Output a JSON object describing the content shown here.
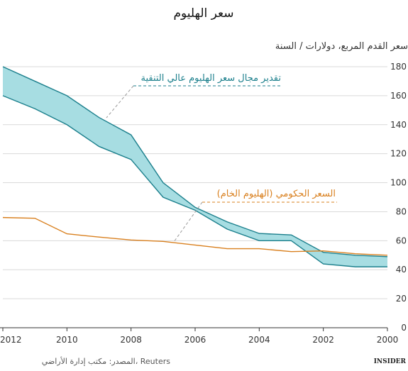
{
  "chart_data": {
    "type": "area",
    "title": "سعر الهليوم",
    "subtitle": "سعر القدم المربع، دولارات / السنة",
    "x_range": [
      2000,
      2012
    ],
    "x_reversed": true,
    "x_ticks": [
      2012,
      2010,
      2008,
      2006,
      2004,
      2002,
      2000
    ],
    "ylim": [
      0,
      180
    ],
    "y_ticks": [
      0,
      20,
      40,
      60,
      80,
      100,
      120,
      140,
      160,
      180
    ],
    "grid": true,
    "series": [
      {
        "name": "تقدير مجال سعر الهليوم عالي التنقية",
        "kind": "band",
        "color": "#1b7f8c",
        "fill": "#a7dde2",
        "x": [
          2012,
          2011,
          2010,
          2009,
          2008,
          2007,
          2006,
          2005,
          2004,
          2003,
          2002,
          2001,
          2000
        ],
        "upper": [
          180,
          170,
          160,
          145,
          133,
          100,
          83,
          73,
          65,
          64,
          52,
          50,
          49
        ],
        "lower": [
          160,
          151,
          140,
          125,
          116,
          90,
          81,
          68,
          60,
          60,
          44,
          42,
          42
        ]
      },
      {
        "name": "السعر الحكومي (الهليوم الخام)",
        "kind": "line",
        "color": "#d9801f",
        "x": [
          2012,
          2011,
          2010,
          2009,
          2008,
          2007,
          2006,
          2005,
          2004,
          2003,
          2002,
          2001,
          2000
        ],
        "values": [
          76,
          75.5,
          64.75,
          62.5,
          60.5,
          59.5,
          57,
          54.5,
          54.5,
          52.5,
          53,
          51,
          50
        ]
      }
    ],
    "source": "المصدر: مكتب إدارة الأراضي، Reuters",
    "logo": "INSIDER"
  }
}
